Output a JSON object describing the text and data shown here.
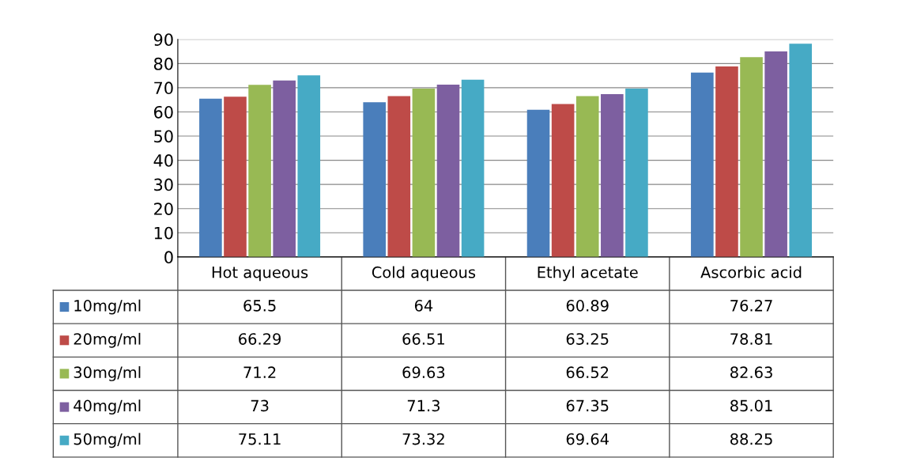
{
  "chart_data": {
    "type": "bar",
    "categories": [
      "Hot aqueous",
      "Cold aqueous",
      "Ethyl acetate",
      "Ascorbic acid"
    ],
    "series": [
      {
        "name": "10mg/ml",
        "color": "#4a7ebb",
        "values": [
          65.5,
          64,
          60.89,
          76.27
        ]
      },
      {
        "name": "20mg/ml",
        "color": "#be4b48",
        "values": [
          66.29,
          66.51,
          63.25,
          78.81
        ]
      },
      {
        "name": "30mg/ml",
        "color": "#98b954",
        "values": [
          71.2,
          69.63,
          66.52,
          82.63
        ]
      },
      {
        "name": "40mg/ml",
        "color": "#7d5fa0",
        "values": [
          73,
          71.3,
          67.35,
          85.01
        ]
      },
      {
        "name": "50mg/ml",
        "color": "#46aac5",
        "values": [
          75.11,
          73.32,
          69.64,
          88.25
        ]
      }
    ],
    "ylim": [
      0,
      90
    ],
    "yticks": [
      0,
      10,
      20,
      30,
      40,
      50,
      60,
      70,
      80,
      90
    ],
    "grid": "y",
    "data_labels": true,
    "legend": "bottom"
  }
}
